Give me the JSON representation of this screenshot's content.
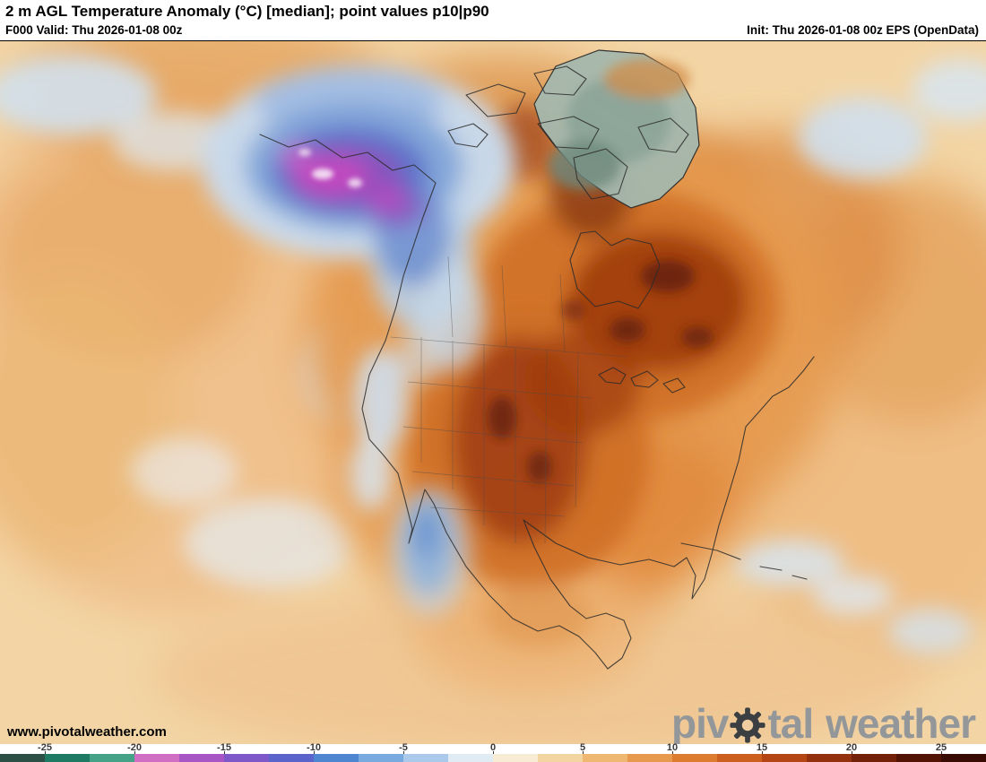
{
  "header": {
    "title": "2 m AGL Temperature Anomaly (°C) [median]; point values p10|p90",
    "valid_label": "F000 Valid: Thu 2026-01-08 00z",
    "init_label": "Init: Thu 2026-01-08 00z EPS (OpenData)"
  },
  "watermark": {
    "url_text": "www.pivotalweather.com"
  },
  "brand": {
    "prefix": "piv",
    "suffix": "tal",
    "word2": "weather"
  },
  "colorbar": {
    "unit": "°C",
    "min": -27.5,
    "max": 27.5,
    "step": 2.5,
    "tick_values": [
      -25,
      -20,
      -15,
      -10,
      -5,
      0,
      5,
      10,
      15,
      20,
      25
    ],
    "segment_colors": [
      "#2c5046",
      "#1f7a64",
      "#45a287",
      "#cf6ec2",
      "#a855c6",
      "#7e57c8",
      "#5b64cb",
      "#4f86d2",
      "#78aadf",
      "#abc9ea",
      "#e1ebf4",
      "#f8ecd4",
      "#f3d5a2",
      "#eeb873",
      "#e79a4d",
      "#dd7c2f",
      "#cc5f1e",
      "#b34614",
      "#93300d",
      "#722008",
      "#521304",
      "#380a02"
    ]
  },
  "map": {
    "colors": {
      "ocean_base": "#f3d5a5",
      "warm_mid": "#e59a4f",
      "warm_strong": "#cf6f26",
      "warm_core": "#a03c10",
      "warm_extreme": "#64200a",
      "cold_light": "#c8daed",
      "cold_mid": "#7fa3d8",
      "cold_strong": "#5a6ec6",
      "cold_purple": "#8a50bd",
      "cold_magenta": "#c649c0",
      "cold_fleck": "#f6e7f6",
      "greenland": "#a4b8ad",
      "coast": "#2b2b2b"
    }
  }
}
